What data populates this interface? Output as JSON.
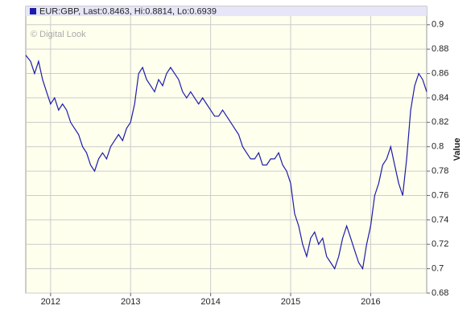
{
  "chart_data": {
    "type": "line",
    "series": [
      {
        "name": "EUR:GBP, Last:0.8463, Hi:0.8814, Lo:0.6939",
        "color": "#1c1caa",
        "x": [
          2011.69,
          2011.75,
          2011.8,
          2011.85,
          2011.9,
          2011.95,
          2012.0,
          2012.05,
          2012.1,
          2012.15,
          2012.2,
          2012.25,
          2012.3,
          2012.35,
          2012.4,
          2012.45,
          2012.5,
          2012.55,
          2012.6,
          2012.65,
          2012.7,
          2012.75,
          2012.8,
          2012.85,
          2012.9,
          2012.95,
          2013.0,
          2013.05,
          2013.1,
          2013.15,
          2013.2,
          2013.25,
          2013.3,
          2013.35,
          2013.4,
          2013.45,
          2013.5,
          2013.55,
          2013.6,
          2013.65,
          2013.7,
          2013.75,
          2013.8,
          2013.85,
          2013.9,
          2013.95,
          2014.0,
          2014.05,
          2014.1,
          2014.15,
          2014.2,
          2014.25,
          2014.3,
          2014.35,
          2014.4,
          2014.45,
          2014.5,
          2014.55,
          2014.6,
          2014.65,
          2014.7,
          2014.75,
          2014.8,
          2014.85,
          2014.9,
          2014.95,
          2015.0,
          2015.05,
          2015.1,
          2015.15,
          2015.2,
          2015.25,
          2015.3,
          2015.35,
          2015.4,
          2015.45,
          2015.5,
          2015.55,
          2015.6,
          2015.65,
          2015.7,
          2015.75,
          2015.8,
          2015.85,
          2015.9,
          2015.95,
          2016.0,
          2016.05,
          2016.1,
          2016.15,
          2016.2,
          2016.25,
          2016.3,
          2016.35,
          2016.4,
          2016.45,
          2016.5,
          2016.55,
          2016.6,
          2016.65,
          2016.7
        ],
        "values": [
          0.875,
          0.87,
          0.86,
          0.87,
          0.855,
          0.845,
          0.835,
          0.84,
          0.83,
          0.835,
          0.83,
          0.82,
          0.815,
          0.81,
          0.8,
          0.795,
          0.785,
          0.78,
          0.79,
          0.795,
          0.79,
          0.8,
          0.805,
          0.81,
          0.805,
          0.815,
          0.82,
          0.835,
          0.86,
          0.865,
          0.855,
          0.85,
          0.845,
          0.855,
          0.85,
          0.86,
          0.865,
          0.86,
          0.855,
          0.845,
          0.84,
          0.845,
          0.84,
          0.835,
          0.84,
          0.835,
          0.83,
          0.825,
          0.825,
          0.83,
          0.825,
          0.82,
          0.815,
          0.81,
          0.8,
          0.795,
          0.79,
          0.79,
          0.795,
          0.785,
          0.785,
          0.79,
          0.79,
          0.795,
          0.785,
          0.78,
          0.77,
          0.745,
          0.735,
          0.72,
          0.71,
          0.725,
          0.73,
          0.72,
          0.725,
          0.71,
          0.705,
          0.7,
          0.71,
          0.725,
          0.735,
          0.725,
          0.715,
          0.705,
          0.7,
          0.72,
          0.735,
          0.76,
          0.77,
          0.785,
          0.79,
          0.8,
          0.785,
          0.77,
          0.76,
          0.79,
          0.83,
          0.85,
          0.86,
          0.855,
          0.845
        ]
      }
    ],
    "xlim": [
      2011.69,
      2016.7
    ],
    "xticks": [
      2012,
      2013,
      2014,
      2015,
      2016
    ],
    "ylim": [
      0.68,
      0.915
    ],
    "yticks": [
      0.68,
      0.7,
      0.72,
      0.74,
      0.76,
      0.78,
      0.8,
      0.82,
      0.84,
      0.86,
      0.88,
      0.9
    ],
    "y_label": "Value",
    "annotation": "© Digital Look",
    "grid": true
  }
}
